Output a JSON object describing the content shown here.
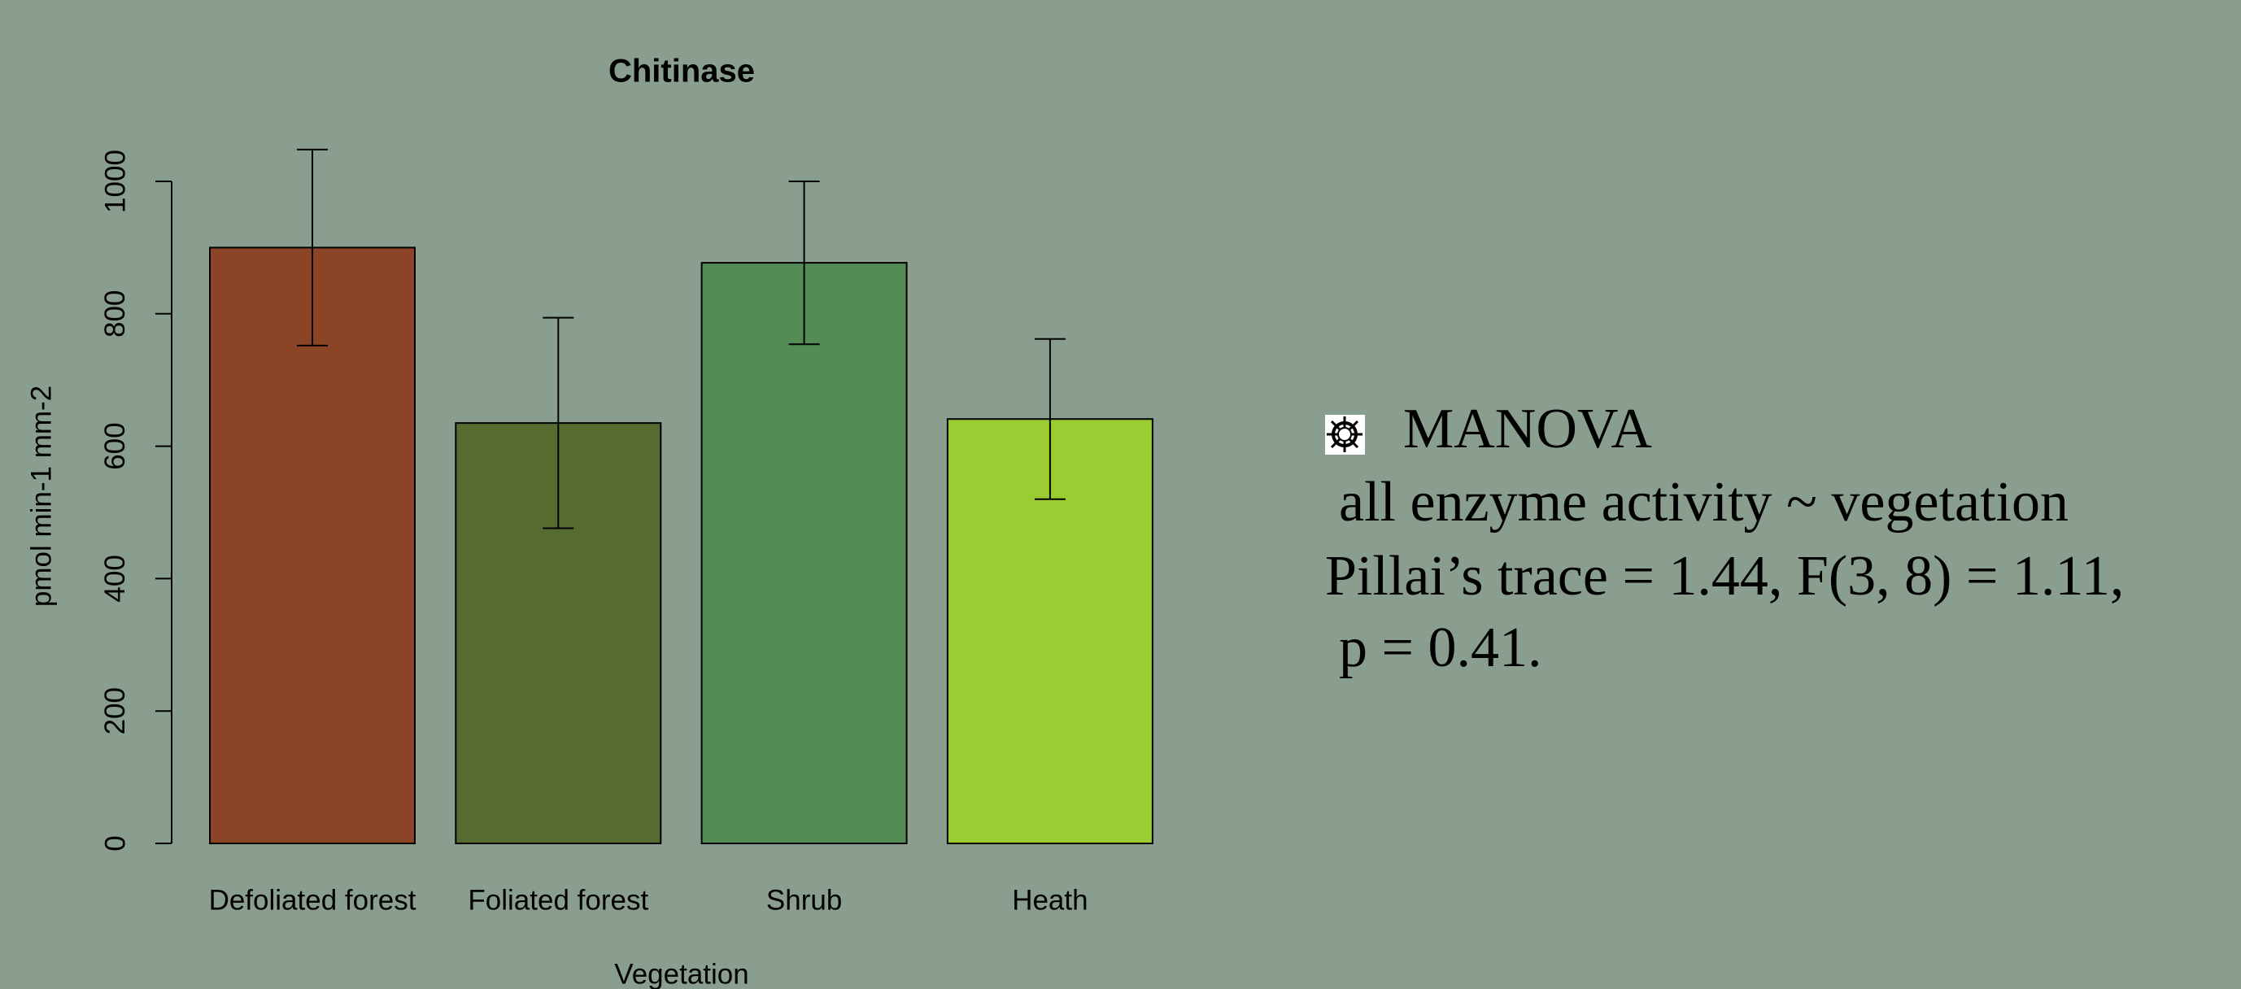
{
  "chart_data": {
    "type": "bar",
    "title": "Chitinase",
    "xlabel": "Vegetation",
    "ylabel": "pmol min-1 mm-2",
    "categories": [
      "Defoliated forest",
      "Foliated forest",
      "Shrub",
      "Heath"
    ],
    "values": [
      900,
      635,
      877,
      641
    ],
    "errors": [
      148,
      159,
      123,
      121
    ],
    "colors": [
      "#8b4426",
      "#566b30",
      "#548c55",
      "#9acd32"
    ],
    "ylim": [
      0,
      1000
    ],
    "yticks": [
      0,
      200,
      400,
      600,
      800,
      1000
    ],
    "annotation": {
      "title": "MANOVA",
      "lines": [
        "all enzyme activity ~ vegetation",
        "Pillai’s trace = 1.44, F(3, 8) = 1.11,",
        "p = 0.41."
      ]
    }
  }
}
